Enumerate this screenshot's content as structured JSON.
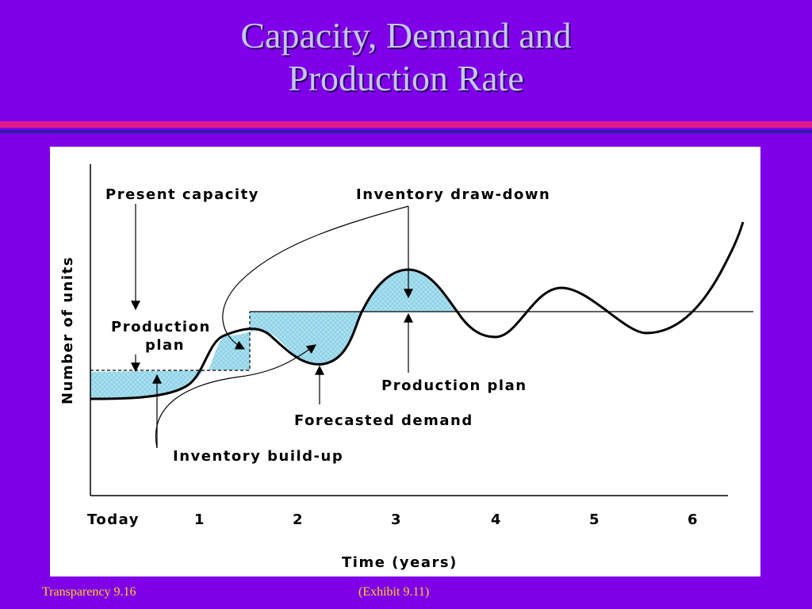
{
  "slide": {
    "title_line1": "Capacity, Demand and",
    "title_line2": "Production Rate",
    "footer_left": "Transparency 9.16",
    "footer_right": "(Exhibit 9.11)"
  },
  "diagram": {
    "y_axis_label": "Number of units",
    "x_axis_label": "Time (years)",
    "x_ticks": [
      "Today",
      "1",
      "2",
      "3",
      "4",
      "5",
      "6"
    ],
    "annotations": {
      "present_capacity": "Present capacity",
      "inventory_draw_down": "Inventory draw-down",
      "production_plan_left_1": "Production",
      "production_plan_left_2": "plan",
      "production_plan_right": "Production plan",
      "forecasted_demand": "Forecasted demand",
      "inventory_build_up": "Inventory build-up"
    }
  },
  "colors": {
    "background": "#7f00e8",
    "title": "#c6c6ff",
    "rule_pink": "#e01a8c",
    "rule_dark": "#2a1ca8",
    "footer": "#ffd21a",
    "inventory_fill": "#a8e0f0"
  }
}
